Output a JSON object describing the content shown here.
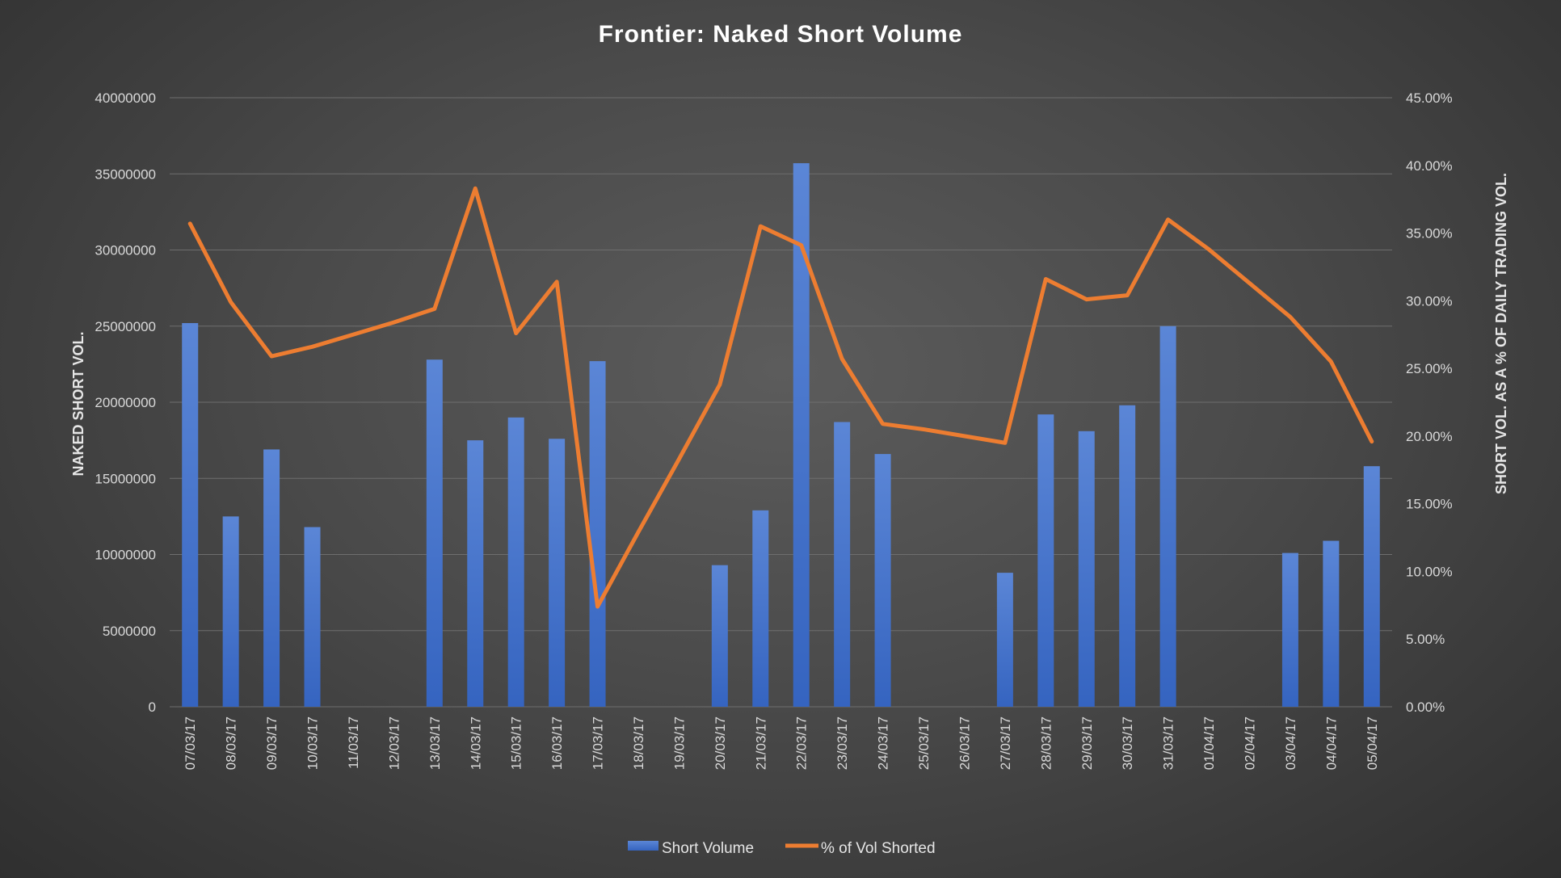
{
  "chart_data": {
    "type": "bar+line",
    "title": "Frontier: Naked Short Volume",
    "categories": [
      "07/03/17",
      "08/03/17",
      "09/03/17",
      "10/03/17",
      "11/03/17",
      "12/03/17",
      "13/03/17",
      "14/03/17",
      "15/03/17",
      "16/03/17",
      "17/03/17",
      "18/03/17",
      "19/03/17",
      "20/03/17",
      "21/03/17",
      "22/03/17",
      "23/03/17",
      "24/03/17",
      "25/03/17",
      "26/03/17",
      "27/03/17",
      "28/03/17",
      "29/03/17",
      "30/03/17",
      "31/03/17",
      "01/04/17",
      "02/04/17",
      "03/04/17",
      "04/04/17",
      "05/04/17"
    ],
    "series": [
      {
        "name": "Short Volume",
        "type": "bar",
        "axis": "left",
        "color": "#4472c4",
        "values": [
          25200000,
          12500000,
          16900000,
          11800000,
          0,
          0,
          22800000,
          17500000,
          19000000,
          17600000,
          22700000,
          0,
          0,
          9300000,
          12900000,
          35700000,
          18700000,
          16600000,
          0,
          0,
          8800000,
          19200000,
          18100000,
          19800000,
          25000000,
          0,
          0,
          10100000,
          10900000,
          15800000
        ]
      },
      {
        "name": "% of Vol Shorted",
        "type": "line",
        "axis": "right",
        "color": "#ed7d31",
        "values": [
          35.7,
          29.9,
          25.9,
          26.6,
          27.5,
          28.4,
          29.4,
          38.3,
          27.6,
          31.4,
          7.4,
          12.9,
          18.3,
          23.8,
          35.5,
          34.1,
          25.7,
          20.9,
          20.5,
          20.0,
          19.5,
          31.6,
          30.1,
          30.4,
          36.0,
          33.8,
          31.3,
          28.8,
          25.5,
          19.6
        ]
      }
    ],
    "ylabel": "NAKED SHORT VOL.",
    "y2label": "SHORT VOL. AS A % OF DAILY TRADING VOL.",
    "ylim": [
      0,
      40000000
    ],
    "y2lim": [
      0,
      45
    ],
    "yticks": [
      "0",
      "5000000",
      "10000000",
      "15000000",
      "20000000",
      "25000000",
      "30000000",
      "35000000",
      "40000000"
    ],
    "y2ticks": [
      "0.00%",
      "5.00%",
      "10.00%",
      "15.00%",
      "20.00%",
      "25.00%",
      "30.00%",
      "35.00%",
      "40.00%",
      "45.00%"
    ],
    "grid": true,
    "legend_position": "bottom",
    "legend": [
      "Short Volume",
      "% of Vol Shorted"
    ]
  }
}
